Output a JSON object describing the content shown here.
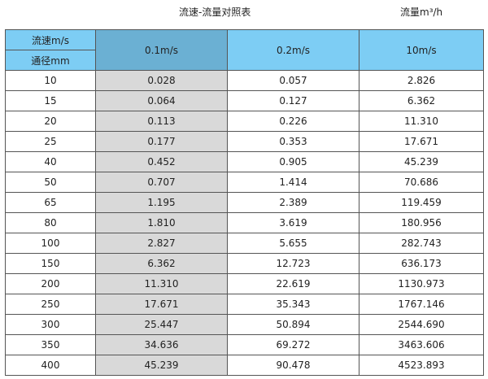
{
  "title": "流速-流量对照表",
  "unit": "流量m³/h",
  "header": {
    "speed_label": "流速m/s",
    "diameter_label": "通径mm",
    "columns": [
      "0.1m/s",
      "0.2m/s",
      "10m/s"
    ]
  },
  "rows": [
    [
      "10",
      "0.028",
      "0.057",
      "2.826"
    ],
    [
      "15",
      "0.064",
      "0.127",
      "6.362"
    ],
    [
      "20",
      "0.113",
      "0.226",
      "11.310"
    ],
    [
      "25",
      "0.177",
      "0.353",
      "17.671"
    ],
    [
      "40",
      "0.452",
      "0.905",
      "45.239"
    ],
    [
      "50",
      "0.707",
      "1.414",
      "70.686"
    ],
    [
      "65",
      "1.195",
      "2.389",
      "119.459"
    ],
    [
      "80",
      "1.810",
      "3.619",
      "180.956"
    ],
    [
      "100",
      "2.827",
      "5.655",
      "282.743"
    ],
    [
      "150",
      "6.362",
      "12.723",
      "636.173"
    ],
    [
      "200",
      "11.310",
      "22.619",
      "1130.973"
    ],
    [
      "250",
      "17.671",
      "35.343",
      "1767.146"
    ],
    [
      "300",
      "25.447",
      "50.894",
      "2544.690"
    ],
    [
      "350",
      "34.636",
      "69.272",
      "3463.606"
    ],
    [
      "400",
      "45.239",
      "90.478",
      "4523.893"
    ]
  ],
  "colors": {
    "header": "#7dcdf4",
    "highlight_header": "#6bb0d3",
    "highlight_cells": "#d9d9d9"
  }
}
